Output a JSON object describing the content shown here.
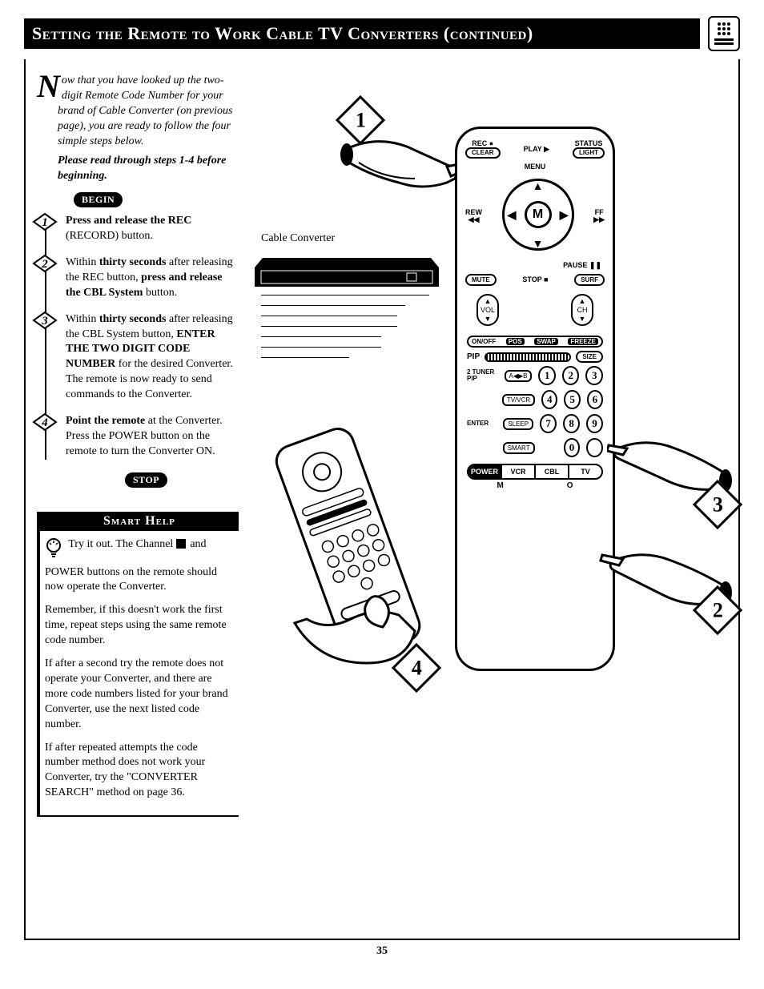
{
  "page": {
    "title": "Setting the Remote to Work Cable TV Converters (continued)",
    "number": "35"
  },
  "intro": {
    "dropcap": "N",
    "text_after_cap": "ow that you have looked up the two-digit Remote Code Number for your brand of Cable Converter (on previous page), you are ready to follow the four simple steps below.",
    "bold_line": "Please read through steps 1-4 before beginning."
  },
  "markers": {
    "begin": "BEGIN",
    "stop": "STOP"
  },
  "steps": [
    {
      "n": "1",
      "html": "<b>Press and release the REC</b> (RECORD) button."
    },
    {
      "n": "2",
      "html": "Within <b>thirty seconds</b> after releasing the REC button, <b>press and release the CBL System</b> button."
    },
    {
      "n": "3",
      "html": "Within <b>thirty seconds</b> after releasing the CBL System button, <b>ENTER THE TWO DIGIT CODE NUMBER</b> for the desired Converter. The remote is now ready to send commands to the Converter."
    },
    {
      "n": "4",
      "html": "<b>Point the remote</b> at the Converter. Press the POWER button on the remote to turn the Converter ON."
    }
  ],
  "smarthelp": {
    "title": "Smart Help",
    "p1_lead": "Try it out. The Channel ",
    "p1_tail": " and POWER buttons on the remote should now operate the Converter.",
    "p2": "Remember, if this doesn't work the first time, repeat steps using the same remote code number.",
    "p3": "If after a second try the remote does not operate your Converter, and there are more code numbers listed for your brand Converter, use the next listed code number.",
    "p4": "If after repeated attempts the code number method does not work your Converter, try the \"CONVERTER SEARCH\" method on page 36."
  },
  "diagram": {
    "converter_label": "Cable Converter",
    "callouts": {
      "one": "1",
      "two": "2",
      "three": "3",
      "four": "4"
    }
  },
  "remote": {
    "top": {
      "rec": "REC ●",
      "clear": "CLEAR",
      "play": "PLAY ▶",
      "status": "STATUS",
      "light": "LIGHT",
      "menu": "MENU",
      "rew": "REW",
      "rew_sym": "◀◀",
      "ff": "FF",
      "ff_sym": "▶▶",
      "pause": "PAUSE ❚❚",
      "mute": "MUTE",
      "stop": "STOP ■",
      "surf": "SURF",
      "m": "M"
    },
    "rockers": {
      "vol": "VOL",
      "ch": "CH"
    },
    "pip_strip": {
      "onoff": "ON/OFF",
      "pos": "POS",
      "swap": "SWAP",
      "freeze": "FREEZE"
    },
    "pip": "PIP",
    "size": "SIZE",
    "keypad": {
      "label1": "2 TUNER PIP",
      "btn1": "A◀▶B",
      "label2": "",
      "btn2": "TV/VCR",
      "label3": "ENTER",
      "btn3": "SLEEP",
      "label4": "",
      "btn4": "SMART",
      "nums": [
        "1",
        "2",
        "3",
        "4",
        "5",
        "6",
        "7",
        "8",
        "9",
        "0"
      ]
    },
    "system": {
      "power": "POWER",
      "vcr": "VCR",
      "cbl": "CBL",
      "tv": "TV",
      "m": "M",
      "o": "O"
    }
  }
}
